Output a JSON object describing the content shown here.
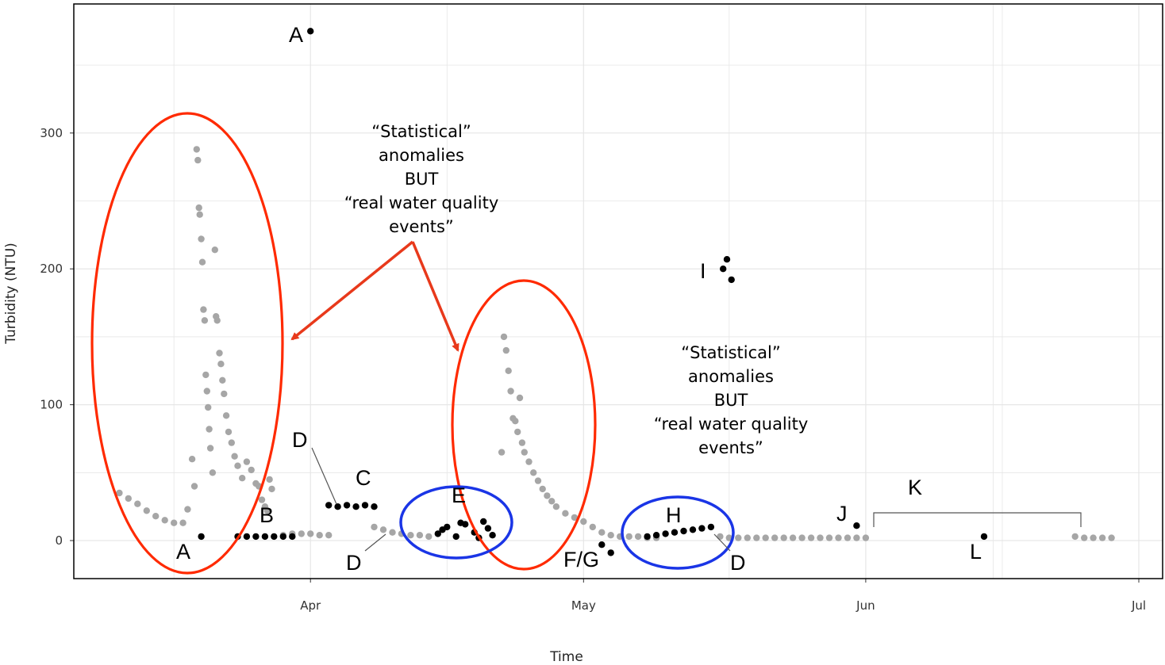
{
  "chart_data": {
    "type": "scatter",
    "title": "",
    "xlabel": "Time",
    "ylabel": "Turbidity (NTU)",
    "grid": true,
    "legend": "none",
    "x_ticks": [
      {
        "date": "2018-04-01",
        "label": "Apr"
      },
      {
        "date": "2018-05-01",
        "label": "May"
      },
      {
        "date": "2018-06-01",
        "label": "Jun"
      },
      {
        "date": "2018-07-01",
        "label": "Jul"
      }
    ],
    "y_ticks": [
      0,
      100,
      200,
      300
    ],
    "xlim": [
      "2018-03-06",
      "2018-07-01"
    ],
    "ylim": [
      -28,
      395
    ],
    "colors": {
      "normal": "#a6a6a6",
      "anomaly": "#000000",
      "real_event_circle": "#ff2a00",
      "statistical_circle": "#1a35e6",
      "arrow": "#e8391b",
      "grid": "#e6e6e6",
      "frame": "#000000"
    },
    "series": [
      {
        "name": "",
        "color": "#a6a6a6",
        "points": [
          [
            "2018-03-11",
            35
          ],
          [
            "2018-03-12",
            31
          ],
          [
            "2018-03-13",
            27
          ],
          [
            "2018-03-14",
            22
          ],
          [
            "2018-03-15",
            18
          ],
          [
            "2018-03-16",
            15
          ],
          [
            "2018-03-17",
            13
          ],
          [
            "2018-03-18",
            13
          ],
          [
            "2018-03-18 12:00",
            23
          ],
          [
            "2018-03-19",
            60
          ],
          [
            "2018-03-19 06:00",
            40
          ],
          [
            "2018-03-19 12:00",
            288
          ],
          [
            "2018-03-19 15:00",
            280
          ],
          [
            "2018-03-19 18:00",
            245
          ],
          [
            "2018-03-19 20:00",
            240
          ],
          [
            "2018-03-20",
            222
          ],
          [
            "2018-03-20 03:00",
            205
          ],
          [
            "2018-03-20 06:00",
            170
          ],
          [
            "2018-03-20 09:00",
            162
          ],
          [
            "2018-03-20 12:00",
            122
          ],
          [
            "2018-03-20 15:00",
            110
          ],
          [
            "2018-03-20 18:00",
            98
          ],
          [
            "2018-03-20 21:00",
            82
          ],
          [
            "2018-03-21",
            68
          ],
          [
            "2018-03-21 06:00",
            50
          ],
          [
            "2018-03-21 12:00",
            214
          ],
          [
            "2018-03-21 15:00",
            165
          ],
          [
            "2018-03-21 18:00",
            162
          ],
          [
            "2018-03-22",
            138
          ],
          [
            "2018-03-22 04:00",
            130
          ],
          [
            "2018-03-22 08:00",
            118
          ],
          [
            "2018-03-22 12:00",
            108
          ],
          [
            "2018-03-22 18:00",
            92
          ],
          [
            "2018-03-23",
            80
          ],
          [
            "2018-03-23 08:00",
            72
          ],
          [
            "2018-03-23 16:00",
            62
          ],
          [
            "2018-03-24",
            55
          ],
          [
            "2018-03-24 12:00",
            46
          ],
          [
            "2018-03-25",
            58
          ],
          [
            "2018-03-25 12:00",
            52
          ],
          [
            "2018-03-26",
            42
          ],
          [
            "2018-03-26 08:00",
            40
          ],
          [
            "2018-03-26 16:00",
            30
          ],
          [
            "2018-03-27",
            25
          ],
          [
            "2018-03-27 06:00",
            22
          ],
          [
            "2018-03-27 12:00",
            45
          ],
          [
            "2018-03-27 18:00",
            38
          ],
          [
            "2018-03-29",
            4
          ],
          [
            "2018-03-30",
            5
          ],
          [
            "2018-03-31",
            5
          ],
          [
            "2018-04-01",
            5
          ],
          [
            "2018-04-02",
            4
          ],
          [
            "2018-04-03",
            4
          ],
          [
            "2018-04-08",
            10
          ],
          [
            "2018-04-09",
            8
          ],
          [
            "2018-04-10",
            6
          ],
          [
            "2018-04-11",
            5
          ],
          [
            "2018-04-12",
            4
          ],
          [
            "2018-04-13",
            4
          ],
          [
            "2018-04-14",
            3
          ],
          [
            "2018-04-22",
            65
          ],
          [
            "2018-04-22 06:00",
            150
          ],
          [
            "2018-04-22 12:00",
            140
          ],
          [
            "2018-04-22 18:00",
            125
          ],
          [
            "2018-04-23",
            110
          ],
          [
            "2018-04-23 06:00",
            90
          ],
          [
            "2018-04-23 12:00",
            88
          ],
          [
            "2018-04-23 18:00",
            80
          ],
          [
            "2018-04-24",
            105
          ],
          [
            "2018-04-24 06:00",
            72
          ],
          [
            "2018-04-24 12:00",
            65
          ],
          [
            "2018-04-25",
            58
          ],
          [
            "2018-04-25 12:00",
            50
          ],
          [
            "2018-04-26",
            44
          ],
          [
            "2018-04-26 12:00",
            38
          ],
          [
            "2018-04-27",
            33
          ],
          [
            "2018-04-27 12:00",
            29
          ],
          [
            "2018-04-28",
            25
          ],
          [
            "2018-04-29",
            20
          ],
          [
            "2018-04-30",
            17
          ],
          [
            "2018-05-01",
            14
          ],
          [
            "2018-05-02",
            10
          ],
          [
            "2018-05-03",
            6
          ],
          [
            "2018-05-04",
            4
          ],
          [
            "2018-05-05",
            3
          ],
          [
            "2018-05-06",
            3
          ],
          [
            "2018-05-07",
            3
          ],
          [
            "2018-05-08",
            2
          ],
          [
            "2018-05-09",
            2
          ],
          [
            "2018-05-16",
            3
          ],
          [
            "2018-05-17",
            2
          ],
          [
            "2018-05-18",
            2
          ],
          [
            "2018-05-19",
            2
          ],
          [
            "2018-05-20",
            2
          ],
          [
            "2018-05-21",
            2
          ],
          [
            "2018-05-22",
            2
          ],
          [
            "2018-05-23",
            2
          ],
          [
            "2018-05-24",
            2
          ],
          [
            "2018-05-25",
            2
          ],
          [
            "2018-05-26",
            2
          ],
          [
            "2018-05-27",
            2
          ],
          [
            "2018-05-28",
            2
          ],
          [
            "2018-05-29",
            2
          ],
          [
            "2018-05-30",
            2
          ],
          [
            "2018-05-31",
            2
          ],
          [
            "2018-06-01",
            2
          ],
          [
            "2018-06-24",
            3
          ],
          [
            "2018-06-25",
            2
          ],
          [
            "2018-06-26",
            2
          ],
          [
            "2018-06-27",
            2
          ],
          [
            "2018-06-28",
            2
          ]
        ]
      },
      {
        "name": "",
        "color": "#000000",
        "points": [
          [
            "2018-03-20",
            3
          ],
          [
            "2018-04-01",
            375
          ],
          [
            "2018-03-24",
            3
          ],
          [
            "2018-03-25",
            3
          ],
          [
            "2018-03-26",
            3
          ],
          [
            "2018-03-27",
            3
          ],
          [
            "2018-03-28",
            3
          ],
          [
            "2018-03-29",
            3
          ],
          [
            "2018-03-30",
            3
          ],
          [
            "2018-04-03",
            26
          ],
          [
            "2018-04-04",
            25
          ],
          [
            "2018-04-05",
            26
          ],
          [
            "2018-04-06",
            25
          ],
          [
            "2018-04-07",
            26
          ],
          [
            "2018-04-08",
            25
          ],
          [
            "2018-04-15",
            5
          ],
          [
            "2018-04-16",
            10
          ],
          [
            "2018-04-17",
            3
          ],
          [
            "2018-04-18",
            12
          ],
          [
            "2018-04-19",
            6
          ],
          [
            "2018-04-20",
            14
          ],
          [
            "2018-04-21",
            4
          ],
          [
            "2018-04-15 12:00",
            8
          ],
          [
            "2018-04-17 12:00",
            13
          ],
          [
            "2018-04-19 12:00",
            2
          ],
          [
            "2018-04-20 12:00",
            9
          ],
          [
            "2018-05-03",
            -3
          ],
          [
            "2018-05-04",
            -9
          ],
          [
            "2018-05-08",
            3
          ],
          [
            "2018-05-09",
            4
          ],
          [
            "2018-05-10",
            5
          ],
          [
            "2018-05-11",
            6
          ],
          [
            "2018-05-12",
            7
          ],
          [
            "2018-05-13",
            8
          ],
          [
            "2018-05-14",
            9
          ],
          [
            "2018-05-15",
            10
          ],
          [
            "2018-05-16 08:00",
            200
          ],
          [
            "2018-05-16 18:00",
            207
          ],
          [
            "2018-05-17 06:00",
            192
          ],
          [
            "2018-05-31",
            11
          ],
          [
            "2018-06-14",
            3
          ]
        ]
      }
    ],
    "annotations": {
      "letters": [
        "A",
        "A",
        "B",
        "C",
        "D",
        "D",
        "D",
        "D",
        "E",
        "F/G",
        "H",
        "I",
        "J",
        "K",
        "L"
      ],
      "text_block_1": [
        "“Statistical”",
        "anomalies",
        "BUT",
        "“real water quality",
        "events”"
      ],
      "text_block_2": [
        "“Statistical”",
        "anomalies",
        "BUT",
        "“real water quality",
        "events”"
      ]
    }
  }
}
